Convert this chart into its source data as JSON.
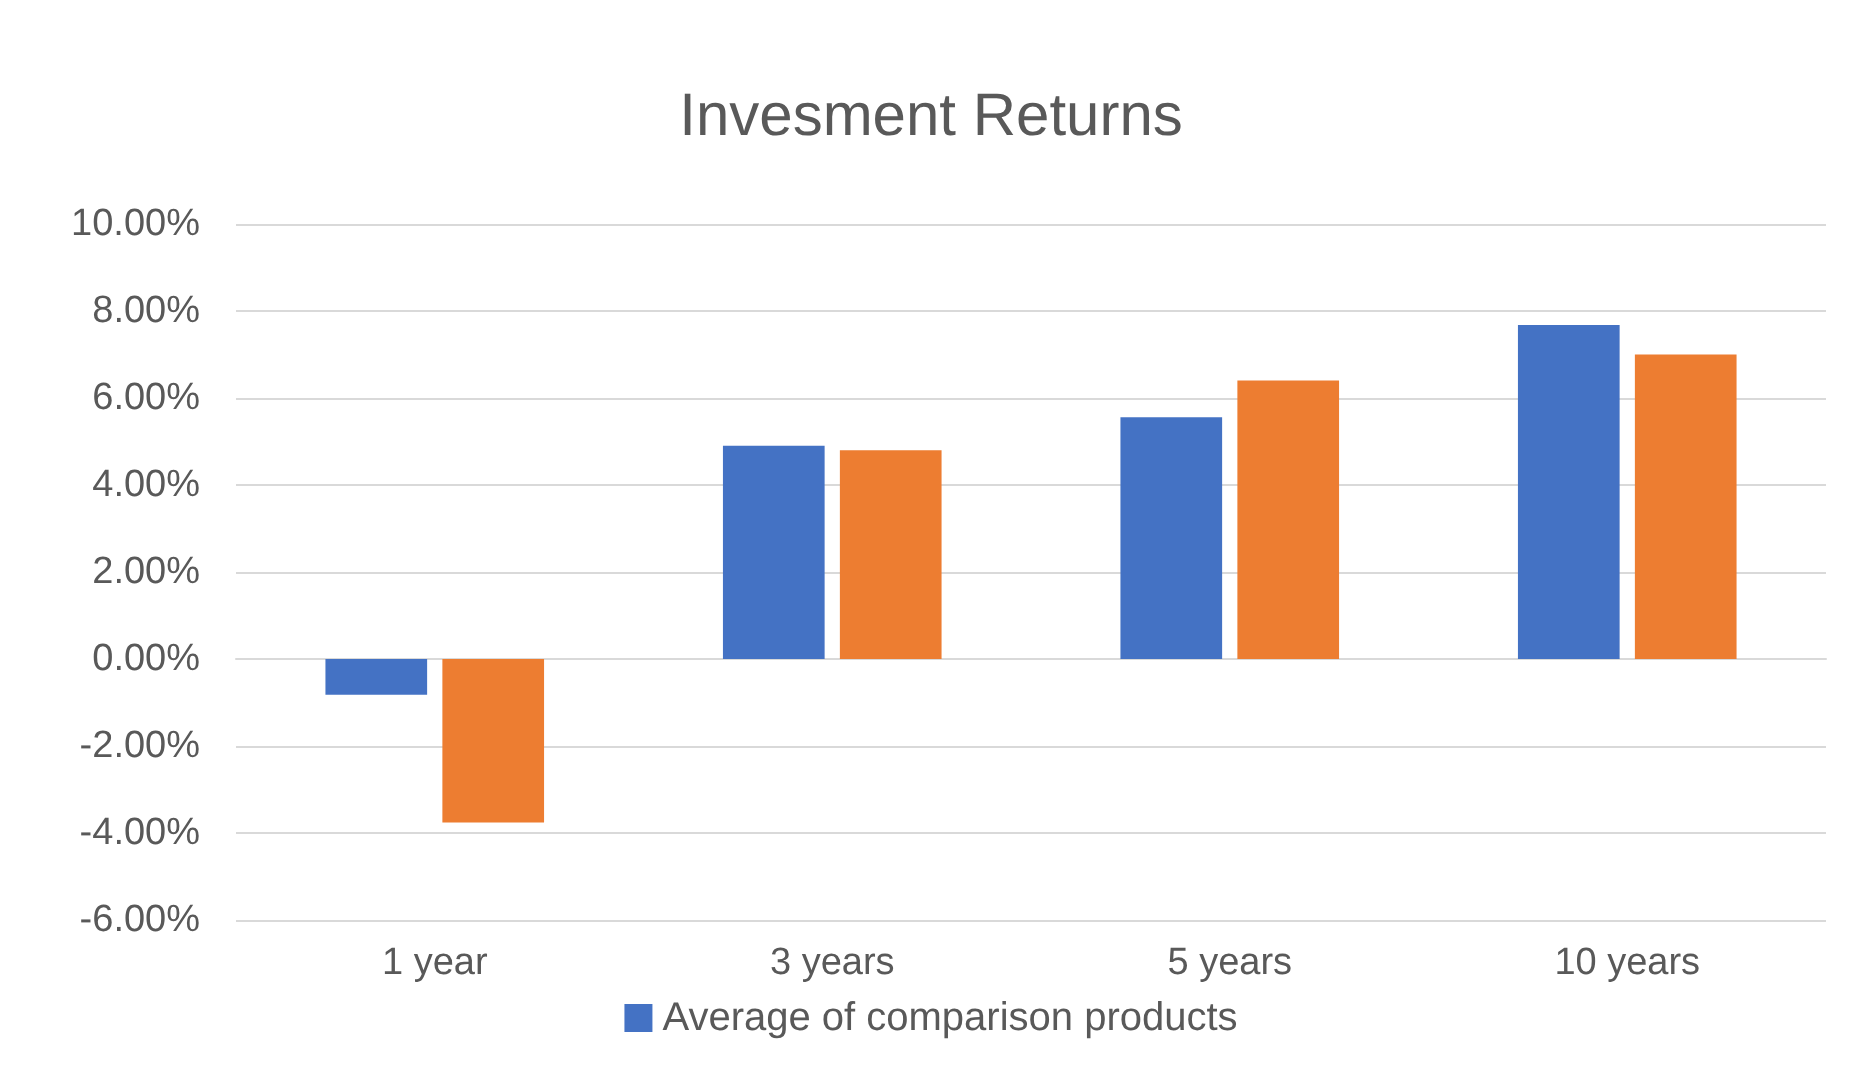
{
  "chart_data": {
    "type": "bar",
    "title": "Invesment Returns",
    "categories": [
      "1 year",
      "3 years",
      "5 years",
      "10 years"
    ],
    "series": [
      {
        "name": "Average of comparison products",
        "color": "#4472c4",
        "values": [
          -0.82,
          4.9,
          5.56,
          7.68
        ]
      },
      {
        "color": "#ed7d31",
        "values": [
          -3.76,
          4.8,
          6.4,
          7.0
        ]
      }
    ],
    "ylim": [
      -6,
      10
    ],
    "yticks": [
      {
        "value": -6,
        "label": "-6.00%"
      },
      {
        "value": -4,
        "label": "-4.00%"
      },
      {
        "value": -2,
        "label": "-2.00%"
      },
      {
        "value": 0,
        "label": "0.00%"
      },
      {
        "value": 2,
        "label": "2.00%"
      },
      {
        "value": 4,
        "label": "4.00%"
      },
      {
        "value": 6,
        "label": "6.00%"
      },
      {
        "value": 8,
        "label": "8.00%"
      },
      {
        "value": 10,
        "label": "10.00%"
      }
    ],
    "grid": "y",
    "legend": "bottom"
  }
}
